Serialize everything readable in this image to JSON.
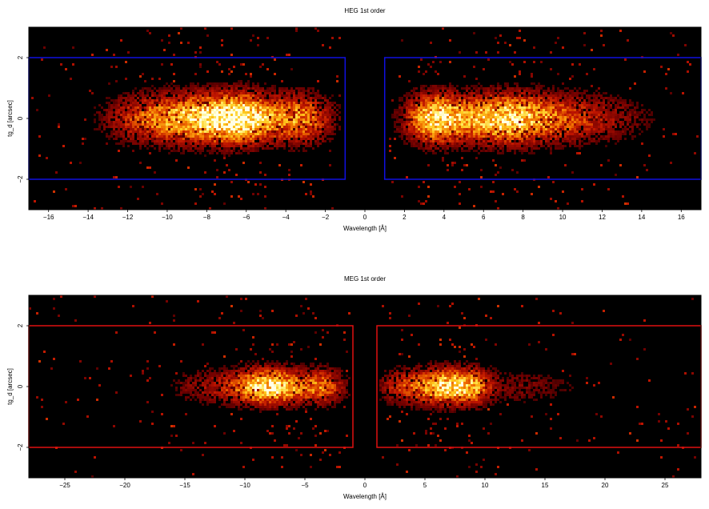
{
  "chart_data": [
    {
      "type": "heatmap",
      "title": "HEG 1st order",
      "xlabel": "Wavelength [Å]",
      "ylabel": "tg_d [arcsec]",
      "xlim": [
        -17,
        17
      ],
      "ylim": [
        -3,
        3
      ],
      "xticks": [
        -16,
        -14,
        -12,
        -10,
        -8,
        -6,
        -4,
        -2,
        0,
        2,
        4,
        6,
        8,
        10,
        12,
        14,
        16
      ],
      "xtick_labels": [
        "−16",
        "−14",
        "−12",
        "−10",
        "−8",
        "−6",
        "−4",
        "−2",
        "0",
        "2",
        "4",
        "6",
        "8",
        "10",
        "12",
        "14",
        "16"
      ],
      "yticks": [
        -2,
        0,
        2
      ],
      "ytick_labels": [
        "−2",
        "0",
        "2"
      ],
      "colormap": "black-red-orange-yellow-white",
      "background": "#000000",
      "regions": [
        {
          "x": [
            -17,
            -1
          ],
          "y": [
            -2,
            2
          ],
          "color": "#1010e0"
        },
        {
          "x": [
            1,
            17
          ],
          "y": [
            -2,
            2
          ],
          "color": "#1010e0"
        }
      ],
      "emission": [
        {
          "center": -7.5,
          "width": 1.9,
          "amp": 1.0
        },
        {
          "center": -6.0,
          "width": 1.0,
          "amp": 0.45
        },
        {
          "center": -3.2,
          "width": 1.1,
          "amp": 0.65
        },
        {
          "center": -11.0,
          "width": 1.6,
          "amp": 0.45
        },
        {
          "center": 3.5,
          "width": 1.0,
          "amp": 0.9
        },
        {
          "center": 7.0,
          "width": 1.8,
          "amp": 1.0
        },
        {
          "center": 10.5,
          "width": 1.6,
          "amp": 0.35
        },
        {
          "center": 13.0,
          "width": 1.5,
          "amp": 0.15
        }
      ],
      "spatial_sigma": 0.55
    },
    {
      "type": "heatmap",
      "title": "MEG 1st order",
      "xlabel": "Wavelength [Å]",
      "ylabel": "tg_d [arcsec]",
      "xlim": [
        -28,
        28
      ],
      "ylim": [
        -3,
        3
      ],
      "xticks": [
        -25,
        -20,
        -15,
        -10,
        -5,
        0,
        5,
        10,
        15,
        20,
        25
      ],
      "xtick_labels": [
        "−25",
        "−20",
        "−15",
        "−10",
        "−5",
        "0",
        "5",
        "10",
        "15",
        "20",
        "25"
      ],
      "yticks": [
        -2,
        0,
        2
      ],
      "ytick_labels": [
        "−2",
        "0",
        "2"
      ],
      "colormap": "black-red-orange-yellow-white",
      "background": "#000000",
      "regions": [
        {
          "x": [
            -28,
            -1
          ],
          "y": [
            -2,
            2
          ],
          "color": "#e01010"
        },
        {
          "x": [
            1,
            28
          ],
          "y": [
            -2,
            2
          ],
          "color": "#e01010"
        }
      ],
      "emission": [
        {
          "center": -7.8,
          "width": 2.0,
          "amp": 1.0
        },
        {
          "center": -3.5,
          "width": 1.3,
          "amp": 0.55
        },
        {
          "center": -12.5,
          "width": 2.5,
          "amp": 0.3
        },
        {
          "center": 6.8,
          "width": 1.6,
          "amp": 1.0
        },
        {
          "center": 9.2,
          "width": 1.0,
          "amp": 0.45
        },
        {
          "center": 3.2,
          "width": 1.4,
          "amp": 0.45
        },
        {
          "center": 13.0,
          "width": 2.5,
          "amp": 0.2
        },
        {
          "center": 19.0,
          "width": 3.0,
          "amp": 0.06
        }
      ],
      "spatial_sigma": 0.4
    }
  ]
}
